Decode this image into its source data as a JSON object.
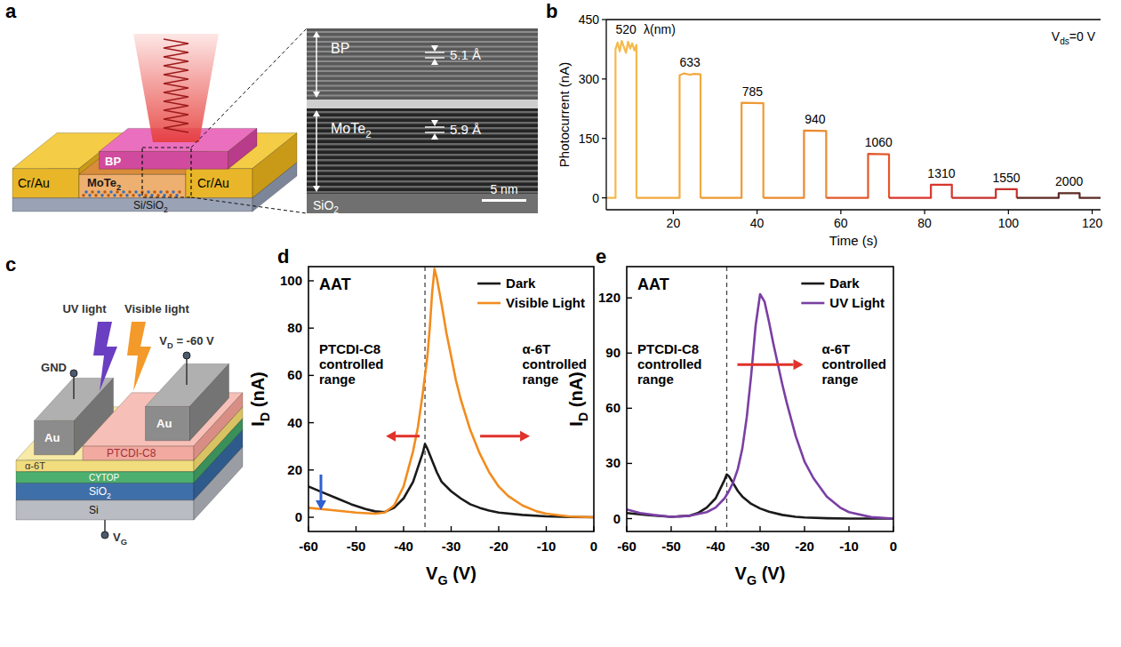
{
  "panel_a": {
    "panel_label": "a",
    "device": {
      "electrode_left": "Cr/Au",
      "electrode_right": "Cr/Au",
      "top_layer": "BP",
      "bottom_layer": {
        "text": "MoTe2",
        "sub": "2"
      },
      "substrate": {
        "text": "Si/SiO2",
        "sub": "2"
      }
    },
    "tem": {
      "top_layer": "BP",
      "top_spacing": "5.1 Å",
      "middle_layer": {
        "text": "MoTe2",
        "sub": "2"
      },
      "middle_spacing": "5.9 Å",
      "bottom_layer": {
        "text": "SiO2",
        "sub": "2"
      },
      "scale_bar": "5 nm"
    }
  },
  "panel_c": {
    "panel_label": "c",
    "light_uv": "UV light",
    "light_visible": "Visible light",
    "drain": {
      "text": "VD = -60 V",
      "sub": "D"
    },
    "source": "GND",
    "gate": {
      "text": "VG",
      "sub": "G"
    },
    "electrode_left": "Au",
    "electrode_right": "Au",
    "layers": [
      "PTCDI-C8",
      "α-6T",
      "CYTOP",
      {
        "text": "SiO2",
        "sub": "2"
      },
      "Si"
    ]
  },
  "chart_data": [
    {
      "type": "line",
      "panel_label": "b",
      "x_label": "Time (s)",
      "y_label": "Photocurrent (nA)",
      "annotations": [
        {
          "text": "λ(nm)"
        },
        {
          "text": "Vds=0 V",
          "sub": "ds"
        }
      ],
      "xlim": [
        4,
        122
      ],
      "xticks": [
        20,
        40,
        60,
        80,
        100,
        120
      ],
      "ylim": [
        -30,
        450
      ],
      "yticks": [
        0,
        150,
        300,
        450
      ],
      "series": [
        {
          "name": "520",
          "color": "#f5b94c",
          "x": [
            4,
            6.2,
            6.2,
            6.7,
            7.2,
            7.7,
            8.2,
            8.7,
            9.2,
            9.7,
            10.2,
            10.7,
            11.2,
            11.2
          ],
          "values": [
            0,
            0,
            375,
            392,
            370,
            396,
            381,
            366,
            394,
            377,
            390,
            372,
            386,
            0
          ]
        },
        {
          "name": "633",
          "color": "#f2a93e",
          "x": [
            11.2,
            21.5,
            21.5,
            22.5,
            24,
            25,
            26.5,
            26.5
          ],
          "values": [
            0,
            0,
            309,
            314,
            311,
            313,
            312,
            0
          ]
        },
        {
          "name": "785",
          "color": "#ee9a35",
          "x": [
            26.5,
            36.3,
            36.3,
            41.5,
            41.5
          ],
          "values": [
            0,
            0,
            240,
            239,
            0
          ]
        },
        {
          "name": "940",
          "color": "#ea8a2f",
          "x": [
            41.5,
            51.2,
            51.2,
            56.5,
            56.5
          ],
          "values": [
            0,
            0,
            170,
            169,
            0
          ]
        },
        {
          "name": "1060",
          "color": "#e2582b",
          "x": [
            56.5,
            66.5,
            66.5,
            71.5,
            71.5
          ],
          "values": [
            0,
            0,
            111,
            110,
            0
          ]
        },
        {
          "name": "1310",
          "color": "#d9342c",
          "x": [
            71.5,
            81.5,
            81.5,
            86.5,
            86.5
          ],
          "values": [
            0,
            0,
            33,
            33,
            0
          ]
        },
        {
          "name": "1550",
          "color": "#c82f2b",
          "x": [
            86.5,
            97,
            97,
            102,
            102
          ],
          "values": [
            0,
            0,
            22,
            22,
            0
          ]
        },
        {
          "name": "2000",
          "color": "#5b2a22",
          "x": [
            102,
            112,
            112,
            117,
            117,
            122
          ],
          "values": [
            0,
            0,
            12,
            12,
            0,
            0
          ]
        }
      ]
    },
    {
      "type": "line",
      "panel_label": "d",
      "title": "AAT",
      "x_label": {
        "text": "VG (V)",
        "sub": "G"
      },
      "y_label": {
        "text": "ID (nA)",
        "sub": "D"
      },
      "annotations": [
        {
          "text": "PTCDI-C8 controlled range"
        },
        {
          "text": "α-6T controlled range"
        }
      ],
      "dashed_line_x": -35.5,
      "legend": "top-right",
      "xlim": [
        -60,
        0
      ],
      "xticks": [
        -60,
        -50,
        -40,
        -30,
        -20,
        -10,
        0
      ],
      "ylim": [
        -6,
        106
      ],
      "yticks": [
        0,
        20,
        40,
        60,
        80,
        100
      ],
      "series": [
        {
          "name": "Dark",
          "color": "#1a1a1a",
          "x": [
            -60,
            -57,
            -54,
            -51,
            -48,
            -46,
            -44,
            -42,
            -40,
            -38,
            -37,
            -36,
            -35.5,
            -35,
            -34,
            -33,
            -32,
            -30,
            -28,
            -26,
            -24,
            -22,
            -20,
            -15,
            -10,
            -5,
            0
          ],
          "values": [
            13,
            10.5,
            8,
            5.5,
            3.5,
            2.5,
            2.2,
            4,
            8,
            15,
            21,
            27,
            31,
            29,
            24,
            19,
            15,
            11,
            8,
            5.5,
            4,
            2.8,
            2,
            1,
            0.4,
            0.1,
            0
          ]
        },
        {
          "name": "Visible Light",
          "color": "#f28c1e",
          "x": [
            -60,
            -55,
            -50,
            -46,
            -44,
            -42,
            -40,
            -38,
            -37,
            -36,
            -35,
            -34.5,
            -34,
            -33.5,
            -33,
            -32,
            -31,
            -30,
            -29,
            -28,
            -26,
            -24,
            -22,
            -20,
            -18,
            -15,
            -12,
            -10,
            -5,
            0
          ],
          "values": [
            4,
            3,
            2,
            1.5,
            2,
            5,
            13,
            28,
            38,
            52,
            68,
            80,
            95,
            105,
            101,
            90,
            78,
            68,
            58,
            50,
            37,
            27,
            19,
            13,
            9,
            5,
            2.5,
            1.5,
            0.3,
            0
          ]
        }
      ]
    },
    {
      "type": "line",
      "panel_label": "e",
      "title": "AAT",
      "x_label": {
        "text": "VG (V)",
        "sub": "G"
      },
      "y_label": {
        "text": "ID (nA)",
        "sub": "D"
      },
      "annotations": [
        {
          "text": "PTCDI-C8 controlled range"
        },
        {
          "text": "α-6T controlled range"
        }
      ],
      "dashed_line_x": -37.5,
      "legend": "top-right",
      "xlim": [
        -60,
        0
      ],
      "xticks": [
        -60,
        -50,
        -40,
        -30,
        -20,
        -10,
        0
      ],
      "ylim": [
        -7,
        137
      ],
      "yticks": [
        0,
        30,
        60,
        90,
        120
      ],
      "series": [
        {
          "name": "Dark",
          "color": "#1a1a1a",
          "x": [
            -60,
            -55,
            -50,
            -46,
            -44,
            -42,
            -40,
            -39,
            -38,
            -37.5,
            -37,
            -36,
            -35,
            -34,
            -32,
            -30,
            -28,
            -25,
            -22,
            -20,
            -15,
            -10,
            -5,
            0
          ],
          "values": [
            3,
            1.8,
            1,
            1.5,
            3,
            6,
            11,
            16,
            21,
            24,
            23,
            19,
            15,
            12,
            8,
            5.5,
            3.8,
            2,
            1,
            0.6,
            0.2,
            0,
            0,
            0
          ]
        },
        {
          "name": "UV Light",
          "color": "#7a3fa4",
          "x": [
            -60,
            -57,
            -54,
            -50,
            -46,
            -42,
            -40,
            -38,
            -37,
            -36,
            -35,
            -34,
            -33,
            -32,
            -31,
            -30,
            -29,
            -28,
            -27,
            -26,
            -25,
            -24,
            -22,
            -20,
            -18,
            -15,
            -12,
            -10,
            -5,
            0
          ],
          "values": [
            5,
            3,
            2,
            1,
            1.5,
            3.5,
            6,
            11,
            15,
            20,
            27,
            38,
            55,
            78,
            105,
            122,
            118,
            107,
            95,
            84,
            73,
            63,
            45,
            31,
            22,
            12,
            6,
            3.5,
            0.8,
            0
          ]
        }
      ]
    }
  ]
}
